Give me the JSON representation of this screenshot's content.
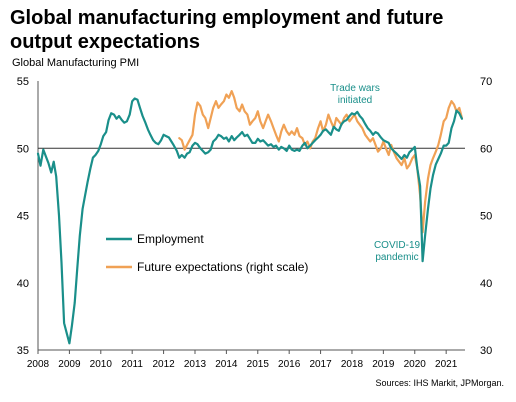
{
  "title": "Global manufacturing employment and future output expectations",
  "subtitle": "Global  Manufacturing  PMI",
  "source": "Sources: IHS Markit, JPMorgan.",
  "chart_data": {
    "type": "line",
    "x_axis": {
      "ticks": [
        "2008",
        "2009",
        "2010",
        "2011",
        "2012",
        "2013",
        "2014",
        "2015",
        "2016",
        "2017",
        "2018",
        "2019",
        "2020",
        "2021"
      ],
      "range": [
        2008,
        2021.6
      ]
    },
    "y_left": {
      "range": [
        35,
        55
      ],
      "ticks": [
        35,
        40,
        45,
        50,
        55
      ]
    },
    "y_right": {
      "range": [
        30,
        70
      ],
      "ticks": [
        30,
        40,
        50,
        60,
        70
      ]
    },
    "reference_line": 50,
    "legend_position": "lower-left",
    "annotations": [
      {
        "text": [
          "Trade wars",
          "initiated"
        ],
        "color": "#1a8f8a"
      },
      {
        "text": [
          "COVID-19",
          "pandemic"
        ],
        "color": "#1a8f8a"
      }
    ],
    "series": [
      {
        "name": "Employment",
        "axis": "left",
        "color": "#1a8f8a",
        "points": [
          [
            2008.0,
            49.6
          ],
          [
            2008.08,
            48.7
          ],
          [
            2008.17,
            49.9
          ],
          [
            2008.25,
            49.4
          ],
          [
            2008.33,
            48.9
          ],
          [
            2008.42,
            48.2
          ],
          [
            2008.5,
            49.0
          ],
          [
            2008.58,
            47.9
          ],
          [
            2008.67,
            45.0
          ],
          [
            2008.75,
            41.5
          ],
          [
            2008.83,
            37.0
          ],
          [
            2008.92,
            36.2
          ],
          [
            2009.0,
            35.5
          ],
          [
            2009.08,
            36.8
          ],
          [
            2009.17,
            38.5
          ],
          [
            2009.25,
            41.0
          ],
          [
            2009.33,
            43.5
          ],
          [
            2009.42,
            45.5
          ],
          [
            2009.5,
            46.5
          ],
          [
            2009.58,
            47.5
          ],
          [
            2009.67,
            48.5
          ],
          [
            2009.75,
            49.3
          ],
          [
            2009.83,
            49.5
          ],
          [
            2009.92,
            49.8
          ],
          [
            2010.0,
            50.3
          ],
          [
            2010.08,
            50.9
          ],
          [
            2010.17,
            51.2
          ],
          [
            2010.25,
            52.1
          ],
          [
            2010.33,
            52.6
          ],
          [
            2010.42,
            52.5
          ],
          [
            2010.5,
            52.2
          ],
          [
            2010.58,
            52.4
          ],
          [
            2010.67,
            52.1
          ],
          [
            2010.75,
            51.9
          ],
          [
            2010.83,
            52.0
          ],
          [
            2010.92,
            52.5
          ],
          [
            2011.0,
            53.5
          ],
          [
            2011.08,
            53.7
          ],
          [
            2011.17,
            53.6
          ],
          [
            2011.25,
            53.0
          ],
          [
            2011.33,
            52.4
          ],
          [
            2011.42,
            51.9
          ],
          [
            2011.5,
            51.4
          ],
          [
            2011.58,
            51.0
          ],
          [
            2011.67,
            50.6
          ],
          [
            2011.75,
            50.4
          ],
          [
            2011.83,
            50.3
          ],
          [
            2011.92,
            50.6
          ],
          [
            2012.0,
            51.0
          ],
          [
            2012.08,
            50.9
          ],
          [
            2012.17,
            50.8
          ],
          [
            2012.25,
            50.5
          ],
          [
            2012.33,
            50.2
          ],
          [
            2012.42,
            49.8
          ],
          [
            2012.5,
            49.3
          ],
          [
            2012.58,
            49.5
          ],
          [
            2012.67,
            49.3
          ],
          [
            2012.75,
            49.6
          ],
          [
            2012.83,
            49.7
          ],
          [
            2012.92,
            50.2
          ],
          [
            2013.0,
            50.4
          ],
          [
            2013.08,
            50.3
          ],
          [
            2013.17,
            50.0
          ],
          [
            2013.25,
            49.8
          ],
          [
            2013.33,
            49.6
          ],
          [
            2013.42,
            49.7
          ],
          [
            2013.5,
            49.9
          ],
          [
            2013.58,
            50.5
          ],
          [
            2013.67,
            50.7
          ],
          [
            2013.75,
            51.0
          ],
          [
            2013.83,
            50.9
          ],
          [
            2013.92,
            50.7
          ],
          [
            2014.0,
            50.8
          ],
          [
            2014.08,
            50.5
          ],
          [
            2014.17,
            50.9
          ],
          [
            2014.25,
            50.6
          ],
          [
            2014.33,
            50.8
          ],
          [
            2014.42,
            51.0
          ],
          [
            2014.5,
            51.2
          ],
          [
            2014.58,
            50.9
          ],
          [
            2014.67,
            51.0
          ],
          [
            2014.75,
            50.7
          ],
          [
            2014.83,
            50.4
          ],
          [
            2014.92,
            50.4
          ],
          [
            2015.0,
            50.7
          ],
          [
            2015.08,
            50.5
          ],
          [
            2015.17,
            50.6
          ],
          [
            2015.25,
            50.4
          ],
          [
            2015.33,
            50.2
          ],
          [
            2015.42,
            50.3
          ],
          [
            2015.5,
            50.1
          ],
          [
            2015.58,
            50.2
          ],
          [
            2015.67,
            49.9
          ],
          [
            2015.75,
            50.1
          ],
          [
            2015.83,
            50.0
          ],
          [
            2015.92,
            49.8
          ],
          [
            2016.0,
            50.2
          ],
          [
            2016.08,
            49.9
          ],
          [
            2016.17,
            49.8
          ],
          [
            2016.25,
            49.9
          ],
          [
            2016.33,
            49.8
          ],
          [
            2016.42,
            50.2
          ],
          [
            2016.5,
            50.4
          ],
          [
            2016.58,
            50.0
          ],
          [
            2016.67,
            50.2
          ],
          [
            2016.75,
            50.4
          ],
          [
            2016.83,
            50.6
          ],
          [
            2016.92,
            50.8
          ],
          [
            2017.0,
            51.0
          ],
          [
            2017.08,
            51.3
          ],
          [
            2017.17,
            51.4
          ],
          [
            2017.25,
            51.2
          ],
          [
            2017.33,
            51.0
          ],
          [
            2017.42,
            51.6
          ],
          [
            2017.5,
            51.4
          ],
          [
            2017.58,
            51.3
          ],
          [
            2017.67,
            51.8
          ],
          [
            2017.75,
            52.0
          ],
          [
            2017.83,
            52.1
          ],
          [
            2017.92,
            52.4
          ],
          [
            2018.0,
            52.6
          ],
          [
            2018.08,
            52.5
          ],
          [
            2018.17,
            52.7
          ],
          [
            2018.25,
            52.4
          ],
          [
            2018.33,
            52.2
          ],
          [
            2018.42,
            51.8
          ],
          [
            2018.5,
            51.5
          ],
          [
            2018.58,
            51.3
          ],
          [
            2018.67,
            51.0
          ],
          [
            2018.75,
            51.2
          ],
          [
            2018.83,
            51.1
          ],
          [
            2018.92,
            50.8
          ],
          [
            2019.0,
            50.6
          ],
          [
            2019.08,
            50.5
          ],
          [
            2019.17,
            50.4
          ],
          [
            2019.25,
            50.0
          ],
          [
            2019.33,
            49.8
          ],
          [
            2019.42,
            49.6
          ],
          [
            2019.5,
            49.4
          ],
          [
            2019.58,
            49.2
          ],
          [
            2019.67,
            49.5
          ],
          [
            2019.75,
            49.3
          ],
          [
            2019.83,
            49.7
          ],
          [
            2019.92,
            49.9
          ],
          [
            2020.0,
            50.1
          ],
          [
            2020.08,
            48.5
          ],
          [
            2020.17,
            47.2
          ],
          [
            2020.25,
            41.6
          ],
          [
            2020.33,
            43.5
          ],
          [
            2020.42,
            45.5
          ],
          [
            2020.5,
            47.0
          ],
          [
            2020.58,
            48.0
          ],
          [
            2020.67,
            48.8
          ],
          [
            2020.75,
            49.2
          ],
          [
            2020.83,
            49.6
          ],
          [
            2020.92,
            50.2
          ],
          [
            2021.0,
            50.2
          ],
          [
            2021.08,
            50.4
          ],
          [
            2021.17,
            51.5
          ],
          [
            2021.25,
            52.0
          ],
          [
            2021.33,
            52.8
          ],
          [
            2021.42,
            52.6
          ],
          [
            2021.5,
            52.2
          ]
        ]
      },
      {
        "name": "Future expectations (right scale)",
        "axis": "right",
        "color": "#f0a155",
        "points": [
          [
            2012.5,
            61.5
          ],
          [
            2012.58,
            61.2
          ],
          [
            2012.67,
            59.8
          ],
          [
            2012.75,
            60.5
          ],
          [
            2012.83,
            61.2
          ],
          [
            2012.92,
            62.0
          ],
          [
            2013.0,
            65.0
          ],
          [
            2013.08,
            66.8
          ],
          [
            2013.17,
            66.3
          ],
          [
            2013.25,
            65.0
          ],
          [
            2013.33,
            64.5
          ],
          [
            2013.42,
            63.0
          ],
          [
            2013.5,
            64.5
          ],
          [
            2013.58,
            66.0
          ],
          [
            2013.67,
            67.0
          ],
          [
            2013.75,
            66.0
          ],
          [
            2013.83,
            66.5
          ],
          [
            2013.92,
            67.0
          ],
          [
            2014.0,
            68.0
          ],
          [
            2014.08,
            67.5
          ],
          [
            2014.17,
            68.5
          ],
          [
            2014.25,
            67.5
          ],
          [
            2014.33,
            66.0
          ],
          [
            2014.42,
            65.5
          ],
          [
            2014.5,
            66.5
          ],
          [
            2014.58,
            65.5
          ],
          [
            2014.67,
            65.0
          ],
          [
            2014.75,
            63.5
          ],
          [
            2014.83,
            64.0
          ],
          [
            2014.92,
            64.5
          ],
          [
            2015.0,
            65.5
          ],
          [
            2015.08,
            64.0
          ],
          [
            2015.17,
            63.0
          ],
          [
            2015.25,
            64.0
          ],
          [
            2015.33,
            65.0
          ],
          [
            2015.42,
            64.0
          ],
          [
            2015.5,
            63.0
          ],
          [
            2015.58,
            62.0
          ],
          [
            2015.67,
            61.0
          ],
          [
            2015.75,
            62.5
          ],
          [
            2015.83,
            63.5
          ],
          [
            2015.92,
            62.5
          ],
          [
            2016.0,
            62.0
          ],
          [
            2016.08,
            62.5
          ],
          [
            2016.17,
            62.0
          ],
          [
            2016.25,
            63.0
          ],
          [
            2016.33,
            61.8
          ],
          [
            2016.42,
            61.5
          ],
          [
            2016.5,
            60.5
          ],
          [
            2016.58,
            61.0
          ],
          [
            2016.67,
            60.0
          ],
          [
            2016.75,
            61.0
          ],
          [
            2016.83,
            61.5
          ],
          [
            2016.92,
            63.0
          ],
          [
            2017.0,
            64.0
          ],
          [
            2017.08,
            62.5
          ],
          [
            2017.17,
            63.5
          ],
          [
            2017.25,
            65.0
          ],
          [
            2017.33,
            64.0
          ],
          [
            2017.42,
            63.0
          ],
          [
            2017.5,
            64.5
          ],
          [
            2017.58,
            64.0
          ],
          [
            2017.67,
            63.5
          ],
          [
            2017.75,
            64.5
          ],
          [
            2017.83,
            65.0
          ],
          [
            2017.92,
            64.0
          ],
          [
            2018.0,
            64.5
          ],
          [
            2018.08,
            65.0
          ],
          [
            2018.17,
            64.0
          ],
          [
            2018.25,
            63.5
          ],
          [
            2018.33,
            63.0
          ],
          [
            2018.42,
            62.0
          ],
          [
            2018.5,
            61.5
          ],
          [
            2018.58,
            61.0
          ],
          [
            2018.67,
            61.5
          ],
          [
            2018.75,
            60.5
          ],
          [
            2018.83,
            59.5
          ],
          [
            2018.92,
            60.0
          ],
          [
            2019.0,
            61.0
          ],
          [
            2019.08,
            60.0
          ],
          [
            2019.17,
            59.0
          ],
          [
            2019.25,
            60.5
          ],
          [
            2019.33,
            59.5
          ],
          [
            2019.42,
            58.5
          ],
          [
            2019.5,
            58.0
          ],
          [
            2019.58,
            57.5
          ],
          [
            2019.67,
            58.5
          ],
          [
            2019.75,
            57.0
          ],
          [
            2019.83,
            57.5
          ],
          [
            2019.92,
            58.5
          ],
          [
            2020.0,
            59.0
          ],
          [
            2020.08,
            57.0
          ],
          [
            2020.17,
            53.0
          ],
          [
            2020.25,
            47.5
          ],
          [
            2020.33,
            52.0
          ],
          [
            2020.42,
            55.5
          ],
          [
            2020.5,
            57.5
          ],
          [
            2020.58,
            58.5
          ],
          [
            2020.67,
            59.5
          ],
          [
            2020.75,
            60.5
          ],
          [
            2020.83,
            62.0
          ],
          [
            2020.92,
            64.0
          ],
          [
            2021.0,
            64.5
          ],
          [
            2021.08,
            66.0
          ],
          [
            2021.17,
            67.0
          ],
          [
            2021.25,
            66.5
          ],
          [
            2021.33,
            65.5
          ],
          [
            2021.42,
            66.0
          ],
          [
            2021.5,
            64.5
          ]
        ]
      }
    ]
  }
}
